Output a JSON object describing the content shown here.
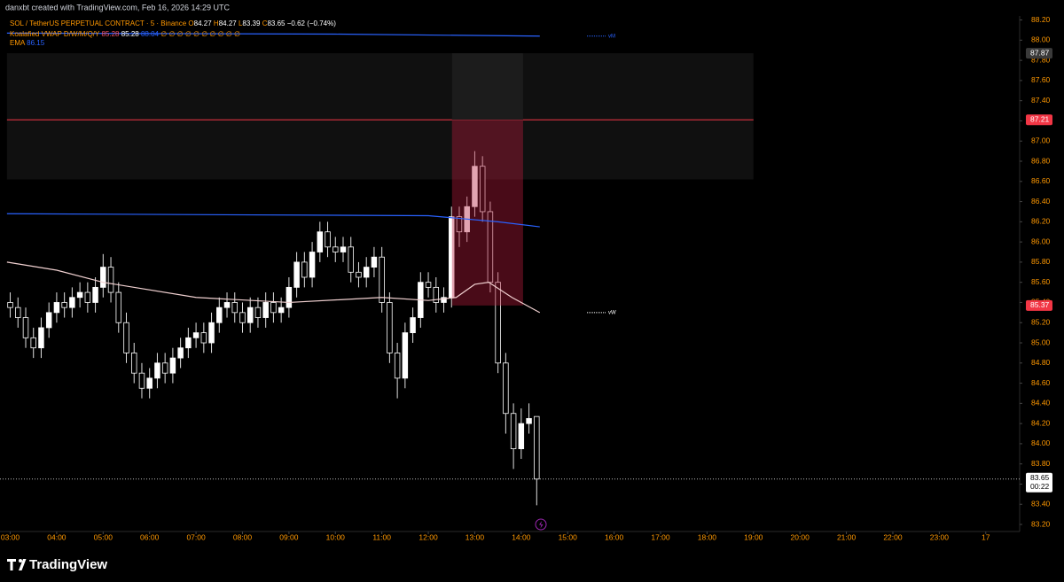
{
  "chart_data": {
    "type": "candlestick",
    "attribution": "danxbt created with TradingView.com, Feb 16, 2026 14:29 UTC",
    "brand": "TradingView",
    "symbol": "SOL / TetherUS PERPETUAL CONTRACT · 5 · Binance",
    "ohlc": [
      {
        "label": "O",
        "value": 84.27
      },
      {
        "label": "H",
        "value": 84.27
      },
      {
        "label": "L",
        "value": 83.39
      },
      {
        "label": "C",
        "value": 83.65
      }
    ],
    "change": "−0.62 (−0.74%)",
    "indicators": [
      {
        "name": "Koalafied VWAP D/W/M/Q/Y",
        "values": [
          85.28,
          85.28,
          88.04
        ],
        "colors": [
          "#f7525f",
          "#ffffff",
          "#2962ff"
        ],
        "empty": "∅ ∅ ∅ ∅ ∅ ∅ ∅ ∅ ∅ ∅"
      },
      {
        "name": "EMA",
        "values": [
          86.15
        ],
        "colors": [
          "#2962ff"
        ]
      }
    ],
    "xlim": [
      2.78,
      24.73
    ],
    "ylim": [
      83.13,
      88.24
    ],
    "xticks": [
      {
        "value": 3,
        "label": "03:00"
      },
      {
        "value": 4,
        "label": "04:00"
      },
      {
        "value": 5,
        "label": "05:00"
      },
      {
        "value": 6,
        "label": "06:00"
      },
      {
        "value": 7,
        "label": "07:00"
      },
      {
        "value": 8,
        "label": "08:00"
      },
      {
        "value": 9,
        "label": "09:00"
      },
      {
        "value": 10,
        "label": "10:00"
      },
      {
        "value": 11,
        "label": "11:00"
      },
      {
        "value": 12,
        "label": "12:00"
      },
      {
        "value": 13,
        "label": "13:00"
      },
      {
        "value": 14,
        "label": "14:00"
      },
      {
        "value": 15,
        "label": "15:00"
      },
      {
        "value": 16,
        "label": "16:00"
      },
      {
        "value": 17,
        "label": "17:00"
      },
      {
        "value": 18,
        "label": "18:00"
      },
      {
        "value": 19,
        "label": "19:00"
      },
      {
        "value": 20,
        "label": "20:00"
      },
      {
        "value": 21,
        "label": "21:00"
      },
      {
        "value": 22,
        "label": "22:00"
      },
      {
        "value": 23,
        "label": "23:00"
      },
      {
        "value": 24,
        "label": "17"
      }
    ],
    "yticks": [
      {
        "value": 83.2,
        "label": "83.20"
      },
      {
        "value": 83.4,
        "label": "83.40"
      },
      {
        "value": 83.6,
        "label": "83.60"
      },
      {
        "value": 83.8,
        "label": "83.80"
      },
      {
        "value": 84,
        "label": "84.00"
      },
      {
        "value": 84.2,
        "label": "84.20"
      },
      {
        "value": 84.4,
        "label": "84.40"
      },
      {
        "value": 84.6,
        "label": "84.60"
      },
      {
        "value": 84.8,
        "label": "84.80"
      },
      {
        "value": 85,
        "label": "85.00"
      },
      {
        "value": 85.2,
        "label": "85.20"
      },
      {
        "value": 85.4,
        "label": "85.40"
      },
      {
        "value": 85.6,
        "label": "85.60"
      },
      {
        "value": 85.8,
        "label": "85.80"
      },
      {
        "value": 86,
        "label": "86.00"
      },
      {
        "value": 86.2,
        "label": "86.20"
      },
      {
        "value": 86.4,
        "label": "86.40"
      },
      {
        "value": 86.6,
        "label": "86.60"
      },
      {
        "value": 86.8,
        "label": "86.80"
      },
      {
        "value": 87,
        "label": "87.00"
      },
      {
        "value": 87.2,
        "label": "87.20"
      },
      {
        "value": 87.4,
        "label": "87.40"
      },
      {
        "value": 87.6,
        "label": "87.60"
      },
      {
        "value": 87.8,
        "label": "87.80"
      },
      {
        "value": 88,
        "label": "88.00"
      },
      {
        "value": 88.2,
        "label": "88.20"
      }
    ],
    "x": [
      3,
      3.1667,
      3.3333,
      3.5,
      3.6667,
      3.8333,
      4,
      4.1667,
      4.3333,
      4.5,
      4.6667,
      4.8333,
      5,
      5.1667,
      5.3333,
      5.5,
      5.6667,
      5.8333,
      6,
      6.1667,
      6.3333,
      6.5,
      6.6667,
      6.8333,
      7,
      7.1667,
      7.3333,
      7.5,
      7.6667,
      7.8333,
      8,
      8.1667,
      8.3333,
      8.5,
      8.6667,
      8.8333,
      9,
      9.1667,
      9.3333,
      9.5,
      9.6667,
      9.8333,
      10,
      10.1667,
      10.3333,
      10.5,
      10.6667,
      10.8333,
      11,
      11.1667,
      11.3333,
      11.5,
      11.6667,
      11.8333,
      12,
      12.1667,
      12.3333,
      12.5,
      12.6667,
      12.8333,
      13,
      13.1667,
      13.3333,
      13.5,
      13.6667,
      13.8333,
      14,
      14.1667,
      14.3333
    ],
    "open": [
      85.4,
      85.35,
      85.25,
      85.05,
      84.95,
      85.15,
      85.3,
      85.4,
      85.35,
      85.45,
      85.5,
      85.4,
      85.55,
      85.75,
      85.5,
      85.2,
      84.9,
      84.7,
      84.55,
      84.65,
      84.8,
      84.7,
      84.85,
      84.95,
      85.05,
      85.1,
      85.0,
      85.2,
      85.35,
      85.4,
      85.3,
      85.2,
      85.35,
      85.25,
      85.4,
      85.3,
      85.35,
      85.55,
      85.8,
      85.65,
      85.9,
      86.1,
      85.95,
      85.9,
      85.95,
      85.7,
      85.65,
      85.75,
      85.85,
      85.4,
      84.9,
      84.65,
      85.1,
      85.25,
      85.6,
      85.55,
      85.4,
      85.45,
      86.25,
      86.1,
      86.35,
      86.75,
      86.3,
      85.6,
      84.8,
      84.3,
      83.95,
      84.2,
      84.27
    ],
    "high": [
      85.5,
      85.45,
      85.35,
      85.15,
      85.25,
      85.4,
      85.5,
      85.5,
      85.55,
      85.6,
      85.6,
      85.65,
      85.88,
      85.85,
      85.6,
      85.3,
      85.0,
      84.8,
      84.75,
      84.9,
      84.9,
      84.95,
      85.05,
      85.15,
      85.2,
      85.2,
      85.3,
      85.45,
      85.5,
      85.5,
      85.4,
      85.45,
      85.45,
      85.5,
      85.5,
      85.45,
      85.65,
      85.9,
      85.9,
      86.0,
      86.2,
      86.2,
      86.05,
      86.05,
      86.05,
      85.8,
      85.85,
      85.95,
      85.95,
      85.5,
      85.0,
      85.2,
      85.35,
      85.7,
      85.7,
      85.65,
      85.55,
      86.35,
      86.35,
      86.45,
      86.9,
      86.85,
      86.4,
      85.7,
      84.9,
      84.4,
      84.35,
      84.4,
      84.27
    ],
    "low": [
      85.25,
      85.15,
      84.95,
      84.85,
      84.85,
      85.05,
      85.2,
      85.25,
      85.25,
      85.35,
      85.3,
      85.3,
      85.45,
      85.4,
      85.1,
      84.8,
      84.6,
      84.45,
      84.45,
      84.55,
      84.6,
      84.6,
      84.75,
      84.85,
      84.95,
      84.9,
      84.9,
      85.1,
      85.25,
      85.2,
      85.1,
      85.1,
      85.15,
      85.15,
      85.2,
      85.2,
      85.25,
      85.45,
      85.55,
      85.55,
      85.8,
      85.85,
      85.8,
      85.8,
      85.6,
      85.55,
      85.55,
      85.65,
      85.3,
      84.8,
      84.45,
      84.55,
      85.0,
      85.15,
      85.45,
      85.3,
      85.3,
      85.35,
      85.95,
      86.0,
      86.25,
      86.2,
      85.5,
      84.7,
      84.1,
      83.75,
      83.85,
      84.1,
      83.39
    ],
    "close": [
      85.35,
      85.25,
      85.05,
      84.95,
      85.15,
      85.3,
      85.4,
      85.35,
      85.45,
      85.5,
      85.4,
      85.55,
      85.75,
      85.5,
      85.2,
      84.9,
      84.7,
      84.55,
      84.65,
      84.8,
      84.7,
      84.85,
      84.95,
      85.05,
      85.1,
      85.0,
      85.2,
      85.35,
      85.4,
      85.3,
      85.2,
      85.35,
      85.25,
      85.4,
      85.3,
      85.35,
      85.55,
      85.8,
      85.65,
      85.9,
      86.1,
      85.95,
      85.9,
      85.95,
      85.7,
      85.65,
      85.75,
      85.85,
      85.4,
      84.9,
      84.65,
      85.1,
      85.25,
      85.6,
      85.55,
      85.4,
      85.45,
      86.25,
      86.1,
      86.35,
      86.75,
      86.3,
      85.6,
      84.8,
      84.3,
      83.95,
      84.2,
      84.25,
      83.65
    ],
    "lines": [
      {
        "color": "#2962ff",
        "x": [
          2.93,
          10,
          14.4
        ],
        "values": [
          88.07,
          88.06,
          88.04
        ]
      },
      {
        "color": "#2962ff",
        "x": [
          2.93,
          12,
          13.5,
          14.4
        ],
        "values": [
          86.28,
          86.26,
          86.2,
          86.15
        ]
      },
      {
        "color": "#f0d0d0",
        "x": [
          2.93,
          4,
          5,
          7,
          9,
          11,
          12,
          12.6,
          13,
          13.3,
          13.8,
          14.4
        ],
        "values": [
          85.8,
          85.72,
          85.6,
          85.45,
          85.4,
          85.45,
          85.42,
          85.45,
          85.58,
          85.6,
          85.45,
          85.3
        ]
      }
    ],
    "zone": {
      "x": [
        2.93,
        19.0
      ],
      "values": [
        87.87,
        86.62
      ],
      "color": "#1a1a1a"
    },
    "position": {
      "x": [
        12.51,
        14.04
      ],
      "target": 87.87,
      "entry": 87.21,
      "stop": 85.37
    },
    "level": {
      "x": [
        2.93,
        19.0
      ],
      "value": 87.21,
      "color": "#f23645"
    },
    "pivots": [
      {
        "label": "vM",
        "value": 88.04
      },
      {
        "label": "vW",
        "value": 85.3
      }
    ],
    "last_price": 83.65,
    "countdown": "00:22",
    "price_labels": [
      {
        "value": 87.87,
        "label": "87.87",
        "color": "#3a3a3a"
      },
      {
        "value": 87.21,
        "label": "87.21",
        "color": "#f23645"
      },
      {
        "value": 85.37,
        "label": "85.37",
        "color": "#f23645"
      }
    ]
  }
}
